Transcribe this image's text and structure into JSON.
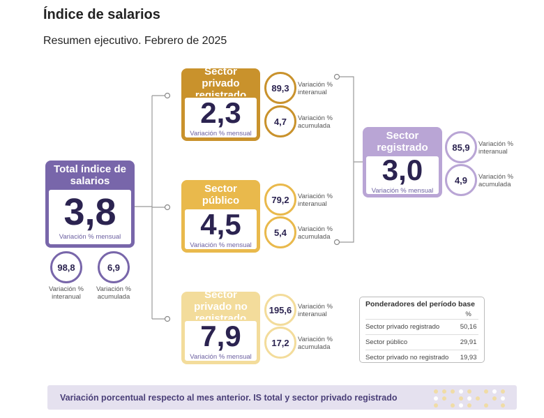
{
  "header": {
    "title": "Índice de salarios",
    "subtitle": "Resumen ejecutivo. Febrero de 2025"
  },
  "cards": [
    {
      "title": "Total índice de salarios",
      "value": "3,8",
      "caption": "Variación % mensual",
      "color": "#7866aa",
      "stats": [
        {
          "value": "98,8",
          "label": "Variación % interanual"
        },
        {
          "value": "6,9",
          "label": "Variación % acumulada"
        }
      ]
    },
    {
      "title": "Sector privado registrado",
      "value": "2,3",
      "caption": "Variación % mensual",
      "color": "#c9922c",
      "stats": [
        {
          "value": "89,3",
          "label": "Variación % interanual"
        },
        {
          "value": "4,7",
          "label": "Variación % acumulada"
        }
      ]
    },
    {
      "title": "Sector público",
      "value": "4,5",
      "caption": "Variación % mensual",
      "color": "#e9b94c",
      "stats": [
        {
          "value": "79,2",
          "label": "Variación % interanual"
        },
        {
          "value": "5,4",
          "label": "Variación % acumulada"
        }
      ]
    },
    {
      "title": "Sector privado no registrado",
      "value": "7,9",
      "caption": "Variación % mensual",
      "color": "#f3dc9b",
      "stats": [
        {
          "value": "195,6",
          "label": "Variación % interanual"
        },
        {
          "value": "17,2",
          "label": "Variación % acumulada"
        }
      ]
    },
    {
      "title": "Sector registrado",
      "value": "3,0",
      "caption": "Variación % mensual",
      "color": "#b9a5d5",
      "stats": [
        {
          "value": "85,9",
          "label": "Variación % interanual"
        },
        {
          "value": "4,9",
          "label": "Variación % acumulada"
        }
      ]
    }
  ],
  "weights_table": {
    "title": "Ponderadores del período base",
    "unit": "%",
    "rows": [
      [
        "Sector privado registrado",
        "50,16"
      ],
      [
        "Sector público",
        "29,91"
      ],
      [
        "Sector privado no registrado",
        "19,93"
      ]
    ]
  },
  "footer": {
    "text": "Variación porcentual respecto al mes anterior. IS total y sector privado registrado"
  }
}
